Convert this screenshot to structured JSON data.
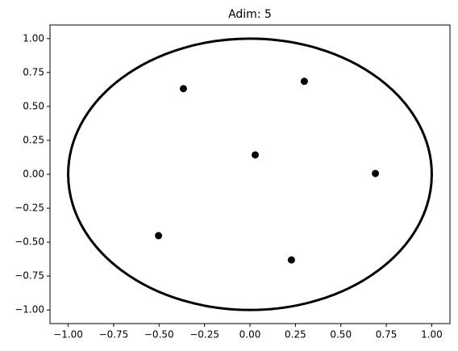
{
  "chart_data": {
    "type": "scatter",
    "title": "Adim: 5",
    "series": [
      {
        "color": "#000000",
        "x": [
          -0.366,
          0.299,
          0.029,
          0.69,
          -0.503,
          0.228
        ],
        "y": [
          0.631,
          0.685,
          0.143,
          0.006,
          -0.452,
          -0.631
        ]
      }
    ],
    "circle": {
      "center": [
        0,
        0
      ],
      "radius": 1,
      "color": "#000000"
    },
    "xlim": [
      -1.1,
      1.1
    ],
    "ylim": [
      -1.1,
      1.1
    ],
    "xticks": [
      {
        "value": -1,
        "label": "−1.00"
      },
      {
        "value": -0.75,
        "label": "−0.75"
      },
      {
        "value": -0.5,
        "label": "−0.50"
      },
      {
        "value": -0.25,
        "label": "−0.25"
      },
      {
        "value": 0,
        "label": "0.00"
      },
      {
        "value": 0.25,
        "label": "0.25"
      },
      {
        "value": 0.5,
        "label": "0.50"
      },
      {
        "value": 0.75,
        "label": "0.75"
      },
      {
        "value": 1,
        "label": "1.00"
      }
    ],
    "yticks": [
      {
        "value": -1,
        "label": "−1.00"
      },
      {
        "value": -0.75,
        "label": "−0.75"
      },
      {
        "value": -0.5,
        "label": "−0.50"
      },
      {
        "value": -0.25,
        "label": "−0.25"
      },
      {
        "value": 0,
        "label": "0.00"
      },
      {
        "value": 0.25,
        "label": "0.25"
      },
      {
        "value": 0.5,
        "label": "0.50"
      },
      {
        "value": 0.75,
        "label": "0.75"
      },
      {
        "value": 1,
        "label": "1.00"
      }
    ],
    "grid": false
  }
}
